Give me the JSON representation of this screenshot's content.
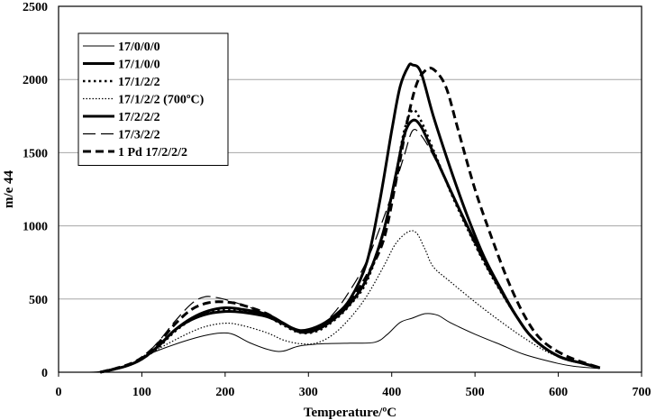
{
  "chart_data": {
    "type": "line",
    "title": "",
    "xlabel": "Temperature/ºC",
    "ylabel": "m/e 44",
    "xlim": [
      0,
      700
    ],
    "ylim": [
      0,
      2500
    ],
    "xticks": [
      "0",
      "100",
      "200",
      "300",
      "400",
      "500",
      "600",
      "700"
    ],
    "yticks": [
      "0",
      "500",
      "1000",
      "1500",
      "2000",
      "2500"
    ],
    "grid": "horizontal",
    "legend_position": "top-left",
    "series": [
      {
        "name": "17/0/0/0",
        "style": "thin-solid",
        "points": [
          [
            25,
            0
          ],
          [
            50,
            5
          ],
          [
            80,
            40
          ],
          [
            100,
            100
          ],
          [
            120,
            150
          ],
          [
            150,
            210
          ],
          [
            175,
            250
          ],
          [
            195,
            268
          ],
          [
            210,
            258
          ],
          [
            230,
            200
          ],
          [
            255,
            150
          ],
          [
            270,
            145
          ],
          [
            290,
            180
          ],
          [
            320,
            195
          ],
          [
            350,
            198
          ],
          [
            380,
            205
          ],
          [
            395,
            260
          ],
          [
            410,
            340
          ],
          [
            425,
            370
          ],
          [
            440,
            400
          ],
          [
            455,
            390
          ],
          [
            470,
            340
          ],
          [
            500,
            260
          ],
          [
            530,
            190
          ],
          [
            560,
            120
          ],
          [
            600,
            60
          ],
          [
            620,
            40
          ],
          [
            650,
            25
          ]
        ]
      },
      {
        "name": "17/1/0/0",
        "style": "thick-solid",
        "points": [
          [
            50,
            0
          ],
          [
            80,
            40
          ],
          [
            100,
            90
          ],
          [
            120,
            180
          ],
          [
            140,
            290
          ],
          [
            160,
            360
          ],
          [
            180,
            400
          ],
          [
            200,
            415
          ],
          [
            220,
            410
          ],
          [
            250,
            380
          ],
          [
            270,
            330
          ],
          [
            290,
            285
          ],
          [
            310,
            310
          ],
          [
            330,
            380
          ],
          [
            350,
            500
          ],
          [
            370,
            750
          ],
          [
            385,
            1150
          ],
          [
            400,
            1650
          ],
          [
            410,
            1950
          ],
          [
            420,
            2090
          ],
          [
            425,
            2100
          ],
          [
            435,
            2050
          ],
          [
            450,
            1750
          ],
          [
            470,
            1400
          ],
          [
            490,
            1080
          ],
          [
            510,
            800
          ],
          [
            530,
            580
          ],
          [
            550,
            380
          ],
          [
            570,
            230
          ],
          [
            600,
            110
          ],
          [
            630,
            60
          ],
          [
            650,
            30
          ]
        ]
      },
      {
        "name": "17/1/2/2",
        "style": "dotted",
        "points": [
          [
            50,
            0
          ],
          [
            80,
            40
          ],
          [
            100,
            90
          ],
          [
            120,
            170
          ],
          [
            140,
            280
          ],
          [
            160,
            360
          ],
          [
            180,
            410
          ],
          [
            200,
            430
          ],
          [
            220,
            420
          ],
          [
            250,
            380
          ],
          [
            270,
            320
          ],
          [
            290,
            270
          ],
          [
            310,
            280
          ],
          [
            330,
            350
          ],
          [
            350,
            460
          ],
          [
            370,
            620
          ],
          [
            390,
            950
          ],
          [
            405,
            1350
          ],
          [
            415,
            1650
          ],
          [
            425,
            1790
          ],
          [
            435,
            1720
          ],
          [
            450,
            1520
          ],
          [
            470,
            1240
          ],
          [
            490,
            990
          ],
          [
            510,
            760
          ],
          [
            530,
            560
          ],
          [
            550,
            380
          ],
          [
            570,
            230
          ],
          [
            600,
            110
          ],
          [
            630,
            60
          ],
          [
            650,
            30
          ]
        ]
      },
      {
        "name": "17/1/2/2 (700ºC)",
        "style": "fine-dotted",
        "points": [
          [
            50,
            0
          ],
          [
            80,
            40
          ],
          [
            100,
            90
          ],
          [
            120,
            160
          ],
          [
            150,
            250
          ],
          [
            175,
            310
          ],
          [
            200,
            335
          ],
          [
            220,
            320
          ],
          [
            250,
            270
          ],
          [
            270,
            220
          ],
          [
            290,
            195
          ],
          [
            310,
            200
          ],
          [
            330,
            260
          ],
          [
            350,
            370
          ],
          [
            370,
            520
          ],
          [
            390,
            720
          ],
          [
            405,
            880
          ],
          [
            420,
            960
          ],
          [
            430,
            950
          ],
          [
            440,
            840
          ],
          [
            450,
            720
          ],
          [
            470,
            620
          ],
          [
            500,
            480
          ],
          [
            530,
            350
          ],
          [
            560,
            230
          ],
          [
            590,
            130
          ],
          [
            620,
            70
          ],
          [
            650,
            30
          ]
        ]
      },
      {
        "name": "17/2/2/2",
        "style": "thick-solid",
        "points": [
          [
            50,
            0
          ],
          [
            80,
            40
          ],
          [
            100,
            90
          ],
          [
            120,
            180
          ],
          [
            140,
            290
          ],
          [
            160,
            370
          ],
          [
            180,
            420
          ],
          [
            200,
            440
          ],
          [
            220,
            430
          ],
          [
            250,
            395
          ],
          [
            270,
            335
          ],
          [
            290,
            275
          ],
          [
            310,
            290
          ],
          [
            330,
            360
          ],
          [
            350,
            470
          ],
          [
            370,
            640
          ],
          [
            390,
            960
          ],
          [
            405,
            1350
          ],
          [
            415,
            1620
          ],
          [
            425,
            1720
          ],
          [
            435,
            1680
          ],
          [
            450,
            1500
          ],
          [
            470,
            1250
          ],
          [
            490,
            1010
          ],
          [
            510,
            780
          ],
          [
            530,
            570
          ],
          [
            550,
            380
          ],
          [
            570,
            230
          ],
          [
            600,
            110
          ],
          [
            630,
            60
          ],
          [
            650,
            30
          ]
        ]
      },
      {
        "name": "17/3/2/2",
        "style": "long-dash",
        "points": [
          [
            50,
            0
          ],
          [
            80,
            45
          ],
          [
            100,
            100
          ],
          [
            120,
            210
          ],
          [
            140,
            350
          ],
          [
            160,
            470
          ],
          [
            175,
            515
          ],
          [
            190,
            510
          ],
          [
            210,
            480
          ],
          [
            240,
            420
          ],
          [
            270,
            330
          ],
          [
            290,
            280
          ],
          [
            310,
            300
          ],
          [
            330,
            400
          ],
          [
            350,
            560
          ],
          [
            370,
            760
          ],
          [
            390,
            1050
          ],
          [
            405,
            1300
          ],
          [
            415,
            1480
          ],
          [
            425,
            1650
          ],
          [
            435,
            1620
          ],
          [
            450,
            1480
          ],
          [
            470,
            1240
          ],
          [
            490,
            990
          ],
          [
            510,
            760
          ],
          [
            530,
            560
          ],
          [
            550,
            380
          ],
          [
            570,
            230
          ],
          [
            600,
            110
          ],
          [
            630,
            60
          ],
          [
            650,
            30
          ]
        ]
      },
      {
        "name": "1 Pd 17/2/2/2",
        "style": "thick-dash",
        "points": [
          [
            50,
            0
          ],
          [
            80,
            45
          ],
          [
            100,
            100
          ],
          [
            120,
            200
          ],
          [
            140,
            330
          ],
          [
            160,
            430
          ],
          [
            180,
            475
          ],
          [
            200,
            480
          ],
          [
            220,
            460
          ],
          [
            250,
            400
          ],
          [
            270,
            330
          ],
          [
            290,
            275
          ],
          [
            310,
            290
          ],
          [
            330,
            370
          ],
          [
            350,
            490
          ],
          [
            370,
            660
          ],
          [
            390,
            900
          ],
          [
            405,
            1300
          ],
          [
            420,
            1750
          ],
          [
            430,
            1970
          ],
          [
            440,
            2060
          ],
          [
            450,
            2070
          ],
          [
            465,
            1950
          ],
          [
            480,
            1650
          ],
          [
            500,
            1250
          ],
          [
            520,
            920
          ],
          [
            540,
            620
          ],
          [
            560,
            380
          ],
          [
            580,
            220
          ],
          [
            610,
            110
          ],
          [
            650,
            30
          ]
        ]
      }
    ]
  }
}
